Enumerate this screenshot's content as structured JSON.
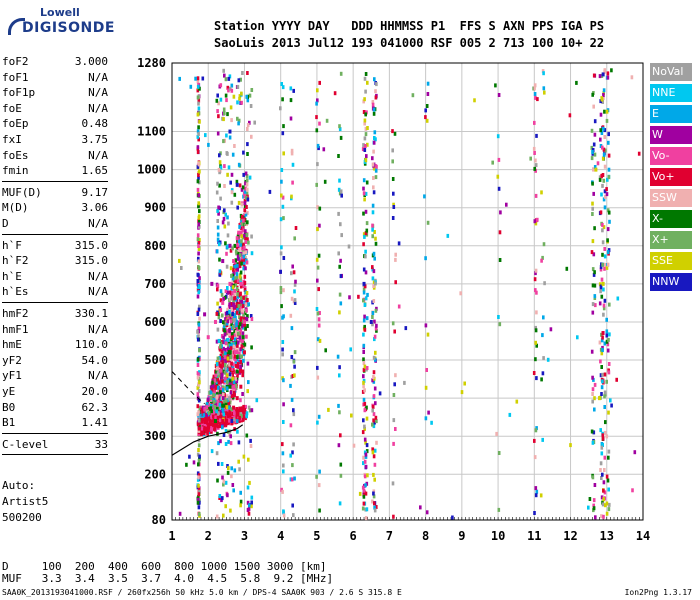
{
  "logo": {
    "line1": "Lowell",
    "line2": "DIGISONDE"
  },
  "header": {
    "line1": "Station YYYY DAY   DDD HHMMSS P1  FFS S AXN PPS IGA PS",
    "line2": "SaoLuis 2013 Jul12 193 041000 RSF 005 2 713 100 10+ 22"
  },
  "params": {
    "group1": [
      {
        "k": "foF2",
        "v": "3.000"
      },
      {
        "k": "foF1",
        "v": "N/A"
      },
      {
        "k": "foF1p",
        "v": "N/A"
      },
      {
        "k": "foE",
        "v": "N/A"
      },
      {
        "k": "foEp",
        "v": "0.48"
      },
      {
        "k": "fxI",
        "v": "3.75"
      },
      {
        "k": "foEs",
        "v": "N/A"
      },
      {
        "k": "fmin",
        "v": "1.65"
      }
    ],
    "group2": [
      {
        "k": "MUF(D)",
        "v": "9.17"
      },
      {
        "k": "M(D)",
        "v": "3.06"
      },
      {
        "k": "D",
        "v": "N/A"
      }
    ],
    "group3": [
      {
        "k": "h`F",
        "v": "315.0"
      },
      {
        "k": "h`F2",
        "v": "315.0"
      },
      {
        "k": "h`E",
        "v": "N/A"
      },
      {
        "k": "h`Es",
        "v": "N/A"
      }
    ],
    "group4": [
      {
        "k": "hmF2",
        "v": "330.1"
      },
      {
        "k": "hmF1",
        "v": "N/A"
      },
      {
        "k": "hmE",
        "v": "110.0"
      },
      {
        "k": "yF2",
        "v": "54.0"
      },
      {
        "k": "yF1",
        "v": "N/A"
      },
      {
        "k": "yE",
        "v": "20.0"
      },
      {
        "k": "B0",
        "v": "62.3"
      },
      {
        "k": "B1",
        "v": "1.41"
      }
    ],
    "group5": [
      {
        "k": "C-level",
        "v": "33"
      }
    ]
  },
  "auto": {
    "line1": "Auto:",
    "line2": "Artist5",
    "line3": "500200"
  },
  "legend": [
    {
      "label": "NoVal",
      "color": "#a0a0a0"
    },
    {
      "label": "NNE",
      "color": "#00c8f0"
    },
    {
      "label": "E",
      "color": "#00a8e8"
    },
    {
      "label": "W",
      "color": "#a000a0"
    },
    {
      "label": "Vo-",
      "color": "#f040a0"
    },
    {
      "label": "Vo+",
      "color": "#e00030"
    },
    {
      "label": "SSW",
      "color": "#f0b0b0"
    },
    {
      "label": "X-",
      "color": "#007800"
    },
    {
      "label": "X+",
      "color": "#70b060"
    },
    {
      "label": "SSE",
      "color": "#d0d000"
    },
    {
      "label": "NNW",
      "color": "#1818c0"
    }
  ],
  "dmuf": {
    "dline": "D     100  200  400  600  800 1000 1500 3000 [km]",
    "mline": "MUF   3.3  3.4  3.5  3.7  4.0  4.5  5.8  9.2 [MHz]"
  },
  "footer": {
    "text": "SAA0K_2013193041000.RSF / 260fx256h 50 kHz 5.0 km / DPS-4 SAA0K 903 / 2.6 S 315.8 E",
    "version": "Ion2Png 1.3.17"
  },
  "chart_data": {
    "type": "scatter",
    "title": "",
    "xlabel": "",
    "ylabel": "",
    "x_unit": "MHz",
    "y_unit": "km",
    "xlim": [
      1,
      14
    ],
    "ylim": [
      80,
      1280
    ],
    "x_ticks": [
      1,
      2,
      3,
      4,
      5,
      6,
      7,
      8,
      9,
      10,
      11,
      12,
      13,
      14
    ],
    "y_ticks": [
      80,
      200,
      300,
      400,
      500,
      600,
      700,
      800,
      900,
      1000,
      1100,
      1280
    ],
    "grid": true,
    "legend_position": "right",
    "traces": [
      {
        "name": "Vo+",
        "color": "#e00030",
        "points": [
          [
            1.75,
            320
          ],
          [
            1.9,
            318
          ],
          [
            2.0,
            322
          ],
          [
            2.2,
            328
          ],
          [
            2.4,
            340
          ],
          [
            2.55,
            355
          ],
          [
            2.7,
            375
          ],
          [
            2.8,
            400
          ],
          [
            2.9,
            430
          ],
          [
            2.95,
            470
          ],
          [
            3.0,
            520
          ]
        ]
      },
      {
        "name": "Vo-",
        "color": "#f040a0",
        "points": [
          [
            2.0,
            560
          ],
          [
            2.2,
            600
          ],
          [
            2.4,
            650
          ],
          [
            2.6,
            700
          ],
          [
            2.7,
            760
          ],
          [
            2.8,
            820
          ],
          [
            2.9,
            700
          ],
          [
            3.0,
            600
          ]
        ]
      },
      {
        "name": "X-",
        "color": "#007800",
        "points": [
          [
            2.2,
            340
          ],
          [
            2.4,
            380
          ],
          [
            2.6,
            430
          ],
          [
            2.8,
            470
          ]
        ]
      },
      {
        "name": "W",
        "color": "#a000a0",
        "points": [
          [
            1.9,
            620
          ],
          [
            2.1,
            700
          ],
          [
            2.4,
            760
          ],
          [
            2.6,
            800
          ]
        ]
      },
      {
        "name": "NNW",
        "color": "#1818c0",
        "points": [
          [
            2.6,
            1100
          ],
          [
            2.8,
            960
          ],
          [
            6.3,
            700
          ],
          [
            6.5,
            600
          ],
          [
            12.9,
            1250
          ]
        ]
      },
      {
        "name": "SSE",
        "color": "#d0d000",
        "points": [
          [
            12.7,
            1000
          ],
          [
            12.9,
            700
          ],
          [
            12.8,
            400
          ]
        ]
      }
    ],
    "profile_curve": {
      "points": [
        [
          1.0,
          250
        ],
        [
          1.6,
          285
        ],
        [
          2.0,
          300
        ],
        [
          2.5,
          310
        ],
        [
          2.8,
          320
        ],
        [
          2.95,
          330
        ]
      ]
    },
    "dashed_curve": {
      "points": [
        [
          1.0,
          470
        ],
        [
          1.3,
          440
        ],
        [
          1.6,
          410
        ],
        [
          1.9,
          385
        ]
      ]
    }
  }
}
